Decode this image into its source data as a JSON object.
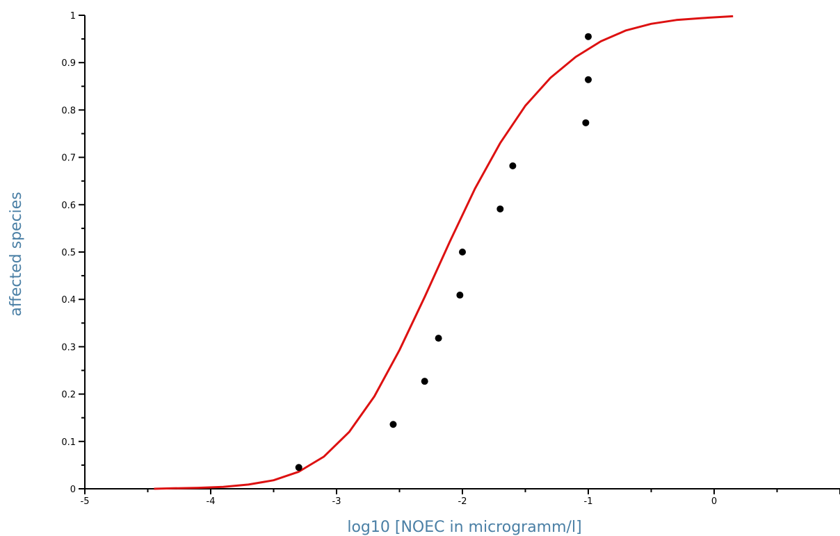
{
  "colors": {
    "axis": "#000000",
    "axis_title": "#4a7fa5",
    "fit_curve": "#dd1111",
    "points": "#000000"
  },
  "chart_data": {
    "type": "scatter",
    "title": "",
    "xlabel": "log10 [NOEC in microgramm/l]",
    "ylabel": "affected species",
    "xlim": [
      -5,
      1
    ],
    "ylim": [
      0,
      1
    ],
    "x_ticks": [
      -5,
      -4,
      -3,
      -2,
      -1,
      0,
      1
    ],
    "x_tick_labels": [
      "-5",
      "-4",
      "-3",
      "-2",
      "-1",
      "0",
      ""
    ],
    "y_ticks": [
      0,
      0.1,
      0.2,
      0.3,
      0.4,
      0.5,
      0.6,
      0.7,
      0.8,
      0.9,
      1
    ],
    "y_tick_labels": [
      "0",
      "0.1",
      "0.2",
      "0.3",
      "0.4",
      "0.5",
      "0.6",
      "0.7",
      "0.8",
      "0.9",
      "1"
    ],
    "grid": false,
    "series": [
      {
        "kind": "points",
        "x": [
          -3.3,
          -2.55,
          -2.3,
          -2.19,
          -2.02,
          -2.0,
          -1.7,
          -1.6,
          -1.02,
          -1.0,
          -1.0
        ],
        "y": [
          0.045,
          0.136,
          0.227,
          0.318,
          0.409,
          0.5,
          0.591,
          0.682,
          0.773,
          0.864,
          0.955
        ]
      },
      {
        "kind": "fit_curve",
        "x": [
          -4.45,
          -4.3,
          -4.1,
          -3.9,
          -3.7,
          -3.5,
          -3.3,
          -3.1,
          -2.9,
          -2.7,
          -2.5,
          -2.3,
          -2.1,
          -1.9,
          -1.7,
          -1.5,
          -1.3,
          -1.1,
          -0.9,
          -0.7,
          -0.5,
          -0.3,
          -0.1,
          0.15
        ],
        "y": [
          0.0,
          0.001,
          0.002,
          0.004,
          0.009,
          0.018,
          0.036,
          0.068,
          0.12,
          0.195,
          0.293,
          0.405,
          0.522,
          0.634,
          0.73,
          0.809,
          0.868,
          0.912,
          0.945,
          0.968,
          0.982,
          0.99,
          0.994,
          0.998
        ]
      }
    ]
  }
}
